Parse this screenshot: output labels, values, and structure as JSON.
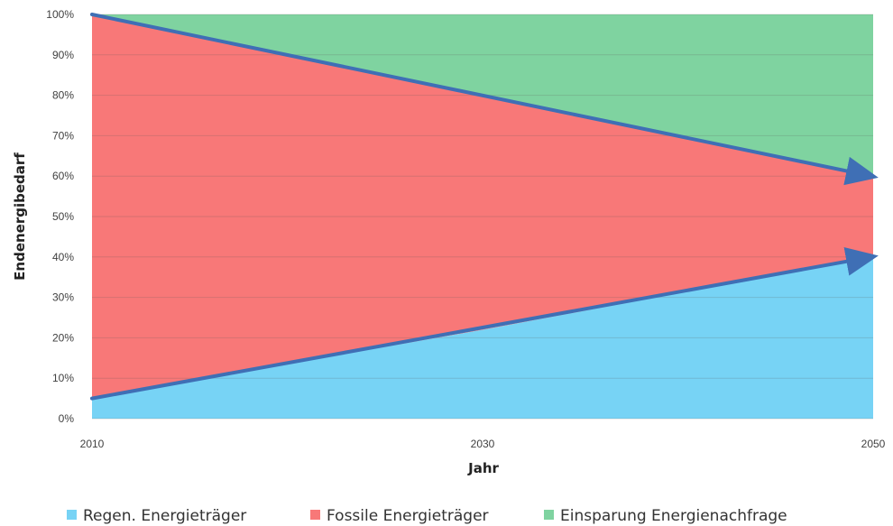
{
  "chart_data": {
    "type": "area",
    "stacked": true,
    "percent": true,
    "x": [
      2010,
      2030,
      2050
    ],
    "x_ticks": [
      "2010",
      "2030",
      "2050"
    ],
    "y_ticks": [
      "0%",
      "10%",
      "20%",
      "30%",
      "40%",
      "50%",
      "60%",
      "70%",
      "80%",
      "90%",
      "100%"
    ],
    "ylim": [
      0,
      100
    ],
    "xlabel": "Jahr",
    "ylabel": "Endenergibedarf",
    "grid": "horizontal",
    "legend_position": "bottom",
    "series": [
      {
        "name": "Regen. Energieträger",
        "color": "#77d3f5",
        "values": [
          5,
          22,
          40
        ]
      },
      {
        "name": "Fossile Energieträger",
        "color": "#f87878",
        "values": [
          95,
          58,
          20
        ]
      },
      {
        "name": "Einsparung Energienachfrage",
        "color": "#7fd3a0",
        "values": [
          0,
          20,
          40
        ]
      }
    ],
    "arrows": [
      {
        "label": "",
        "from": [
          2010,
          5
        ],
        "to": [
          2050,
          40
        ],
        "color": "#3f6fb5"
      },
      {
        "label": "",
        "from": [
          2010,
          100
        ],
        "to": [
          2050,
          60
        ],
        "color": "#3f6fb5"
      }
    ]
  }
}
